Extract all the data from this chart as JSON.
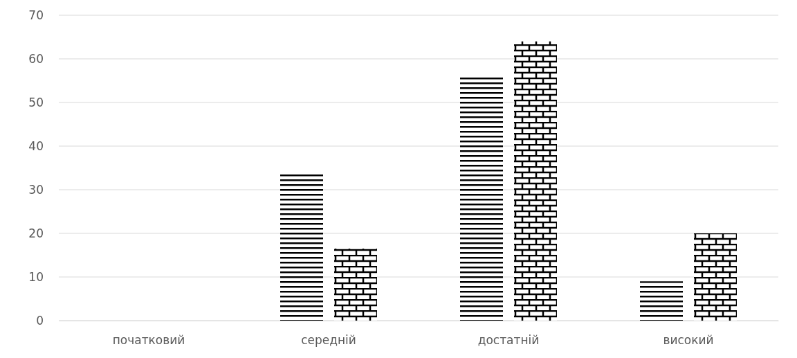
{
  "chart_data": {
    "type": "bar",
    "categories": [
      "початковий",
      "середній",
      "достатній",
      "високий"
    ],
    "series": [
      {
        "color": "#000000",
        "values": [
          0,
          34,
          56,
          9
        ]
      },
      {
        "color": "#000000",
        "values": [
          0,
          16.5,
          64,
          20
        ]
      }
    ],
    "ylim": [
      0,
      70
    ],
    "yticks": [
      0,
      10,
      20,
      30,
      40,
      50,
      60,
      70
    ],
    "grid": "y"
  }
}
